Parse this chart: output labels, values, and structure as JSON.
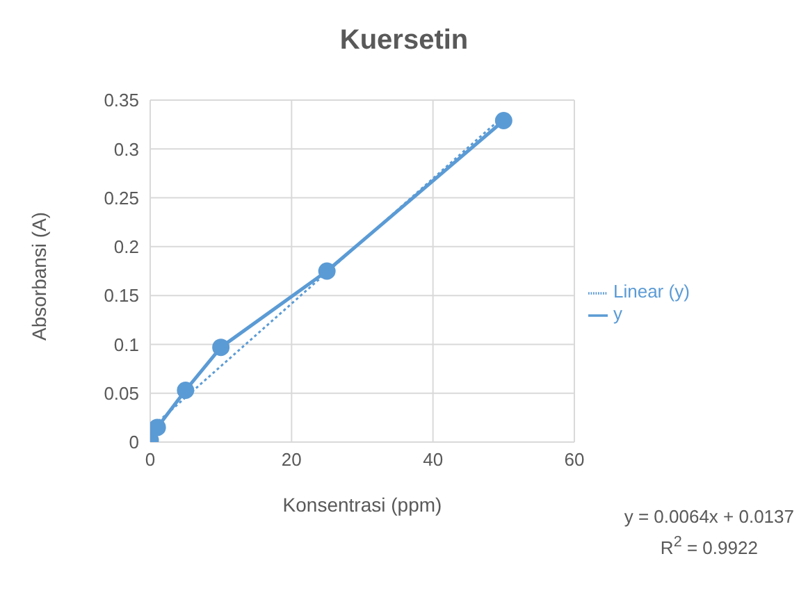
{
  "chart_data": {
    "type": "line",
    "title": "Kuersetin",
    "xlabel": "Konsentrasi (ppm)",
    "ylabel": "Absorbansi (A)",
    "x": [
      0,
      1,
      5,
      10,
      25,
      50
    ],
    "series": [
      {
        "name": "y",
        "color": "#5b9bd5",
        "values": [
          0.002,
          0.015,
          0.053,
          0.097,
          0.175,
          0.329
        ],
        "marker": "circle",
        "line_style": "solid"
      },
      {
        "name": "Linear (y)",
        "color": "#5b9bd5",
        "x": [
          0,
          50
        ],
        "values": [
          0.0137,
          0.3337
        ],
        "marker": "none",
        "line_style": "dotted"
      }
    ],
    "xlim": [
      0,
      60
    ],
    "xticks": [
      0,
      20,
      40,
      60
    ],
    "ylim": [
      0,
      0.35
    ],
    "yticks": [
      0,
      0.05,
      0.1,
      0.15,
      0.2,
      0.25,
      0.3,
      0.35
    ],
    "grid": true,
    "legend": "right",
    "annotations": [
      "y = 0.0064x + 0.0137",
      "R$^{2}$ = 0.9922"
    ]
  }
}
